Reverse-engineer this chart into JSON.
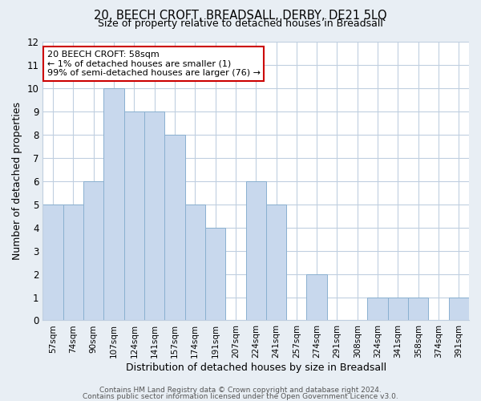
{
  "title": "20, BEECH CROFT, BREADSALL, DERBY, DE21 5LQ",
  "subtitle": "Size of property relative to detached houses in Breadsall",
  "xlabel": "Distribution of detached houses by size in Breadsall",
  "ylabel": "Number of detached properties",
  "bar_labels": [
    "57sqm",
    "74sqm",
    "90sqm",
    "107sqm",
    "124sqm",
    "141sqm",
    "157sqm",
    "174sqm",
    "191sqm",
    "207sqm",
    "224sqm",
    "241sqm",
    "257sqm",
    "274sqm",
    "291sqm",
    "308sqm",
    "324sqm",
    "341sqm",
    "358sqm",
    "374sqm",
    "391sqm"
  ],
  "bar_values": [
    5,
    5,
    6,
    10,
    9,
    9,
    8,
    5,
    4,
    0,
    6,
    5,
    0,
    2,
    0,
    0,
    1,
    1,
    1,
    0,
    1
  ],
  "bar_color": "#c8d8ed",
  "bar_edge_color": "#8ab0d0",
  "ylim": [
    0,
    12
  ],
  "yticks": [
    0,
    1,
    2,
    3,
    4,
    5,
    6,
    7,
    8,
    9,
    10,
    11,
    12
  ],
  "annotation_box_text": "20 BEECH CROFT: 58sqm\n← 1% of detached houses are smaller (1)\n99% of semi-detached houses are larger (76) →",
  "annotation_box_color": "#ffffff",
  "annotation_box_edge_color": "#cc0000",
  "footer_line1": "Contains HM Land Registry data © Crown copyright and database right 2024.",
  "footer_line2": "Contains public sector information licensed under the Open Government Licence v3.0.",
  "background_color": "#e8eef4",
  "plot_background_color": "#ffffff",
  "grid_color": "#c0cfe0"
}
